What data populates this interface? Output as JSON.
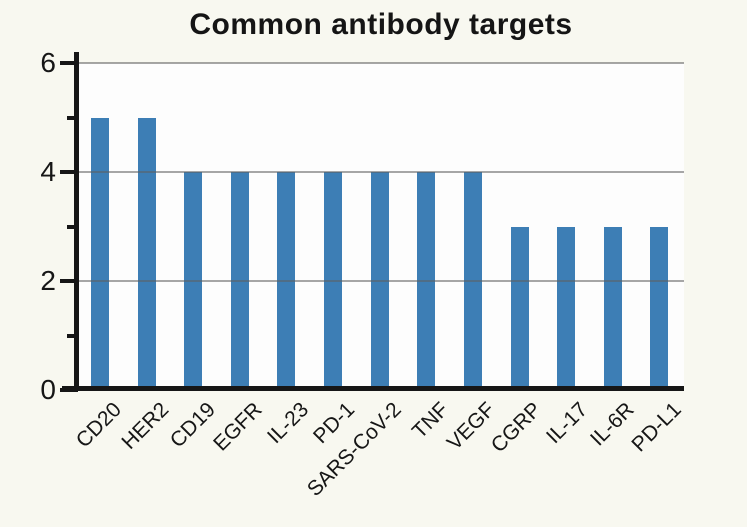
{
  "title": "Common antibody targets",
  "chart_data": {
    "type": "bar",
    "title": "Common antibody targets",
    "categories": [
      "CD20",
      "HER2",
      "CD19",
      "EGFR",
      "IL-23",
      "PD-1",
      "SARS-CoV-2",
      "TNF",
      "VEGF",
      "CGRP",
      "IL-17",
      "IL-6R",
      "PD-L1"
    ],
    "values": [
      5,
      5,
      4,
      4,
      4,
      4,
      4,
      4,
      4,
      3,
      3,
      3,
      3
    ],
    "xlabel": "",
    "ylabel": "",
    "ylim": [
      0,
      6
    ],
    "yticks_major": [
      0,
      2,
      4,
      6
    ],
    "yticks_minor": [
      1,
      3,
      5
    ],
    "gridlines_at": [
      2,
      4,
      6
    ],
    "grid": "on",
    "legend": "none",
    "x_tick_rotation_deg": 45,
    "bar_color": "#3d7eb5",
    "figure_background": "#f8f8f0",
    "plot_background": "#fdfdfd",
    "axis_color": "#161616",
    "grid_color": "#5f5f5f"
  }
}
